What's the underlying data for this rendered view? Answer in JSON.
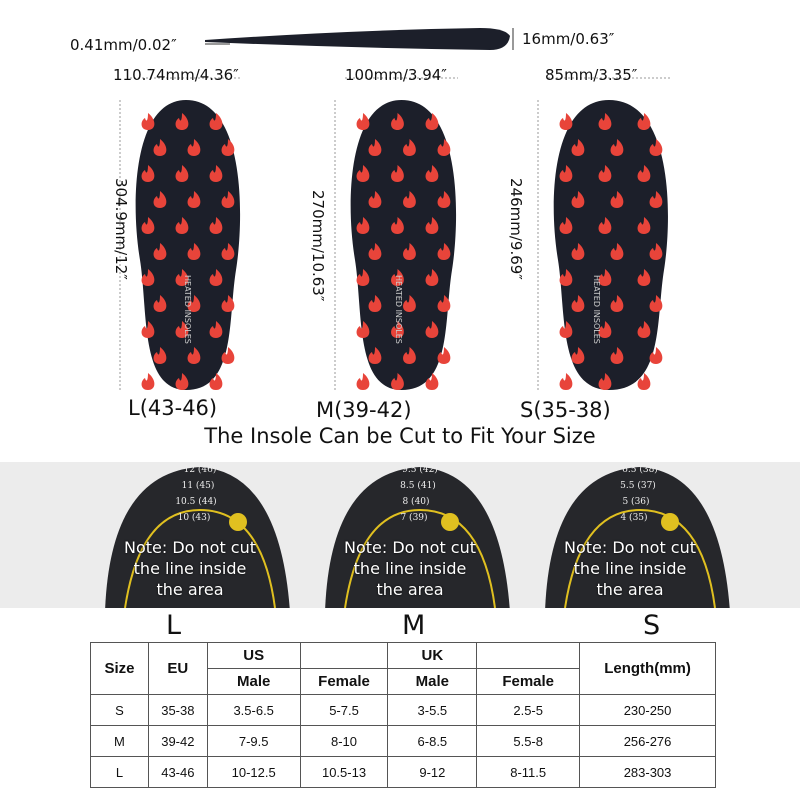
{
  "profile": {
    "thin_label": "0.41mm/0.02″",
    "thick_label": "16mm/0.63″"
  },
  "insoles": [
    {
      "size": "L(43-46)",
      "width": "110.74mm/4.36″",
      "length": "304.9mm/12″",
      "brand": "HEATED INSOLES"
    },
    {
      "size": "M(39-42)",
      "width": "100mm/3.94″",
      "length": "270mm/10.63″",
      "brand": "HEATED INSOLES"
    },
    {
      "size": "S(35-38)",
      "width": "85mm/3.35″",
      "length": "246mm/9.69″",
      "brand": "HEATED INSOLES"
    }
  ],
  "caption": "The Insole Can be Cut to Fit Your Size",
  "cut_guides": [
    {
      "letter": "L",
      "lines": [
        "12 (46)",
        "11 (45)",
        "10.5 (44)",
        "10 (43)"
      ],
      "note": [
        "Note: Do not cut",
        "the line inside",
        "the area"
      ]
    },
    {
      "letter": "M",
      "lines": [
        "9.5 (42)",
        "8.5 (41)",
        "8 (40)",
        "7 (39)"
      ],
      "note": [
        "Note: Do not cut",
        "the line inside",
        "the area"
      ]
    },
    {
      "letter": "S",
      "lines": [
        "6.5 (38)",
        "5.5 (37)",
        "5 (36)",
        "4 (35)"
      ],
      "note": [
        "Note: Do not cut",
        "the line inside",
        "the area"
      ]
    }
  ],
  "colors": {
    "insole": "#1c1f2a",
    "flame": "#e8443a",
    "cut_line": "#e0c020",
    "band": "#ececec"
  },
  "table": {
    "headers": {
      "size": "Size",
      "eu": "EU",
      "us": "US",
      "uk": "UK",
      "male": "Male",
      "female": "Female",
      "length": "Length(mm)"
    },
    "rows": [
      [
        "S",
        "35-38",
        "3.5-6.5",
        "5-7.5",
        "3-5.5",
        "2.5-5",
        "230-250"
      ],
      [
        "M",
        "39-42",
        "7-9.5",
        "8-10",
        "6-8.5",
        "5.5-8",
        "256-276"
      ],
      [
        "L",
        "43-46",
        "10-12.5",
        "10.5-13",
        "9-12",
        "8-11.5",
        "283-303"
      ]
    ]
  }
}
